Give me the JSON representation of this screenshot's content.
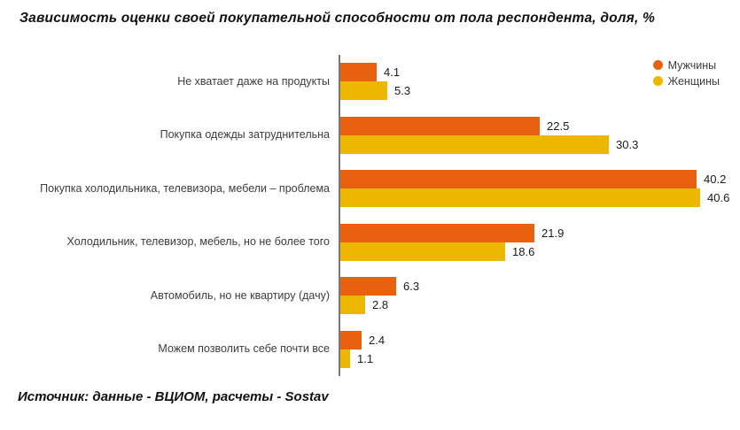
{
  "title": "Зависимость оценки своей покупательной способности от пола респондента, доля, %",
  "source": "Источник: данные - ВЦИОМ, расчеты - Sostav",
  "colors": {
    "men": "#E8610F",
    "women": "#EDB700",
    "axis": "#757575",
    "label_text": "#3c3c3c",
    "value_text": "#1a1a1a"
  },
  "chart_data": {
    "type": "bar",
    "orientation": "horizontal",
    "title": "Зависимость оценки своей покупательной способности от пола респондента, доля, %",
    "xlabel": "",
    "ylabel": "",
    "xlim": [
      0,
      45
    ],
    "grid": false,
    "value_labels": true,
    "legend_position": "top-right",
    "categories": [
      "Не хватает даже на продукты",
      "Покупка одежды затруднительна",
      "Покупка холодильника, телевизора, мебели – проблема",
      "Холодильник, телевизор, мебель, но не более того",
      "Автомобиль, но не квартиру (дачу)",
      "Можем позволить себе почти все"
    ],
    "series": [
      {
        "name": "Мужчины",
        "color": "#E8610F",
        "values": [
          4.1,
          22.5,
          40.2,
          21.9,
          6.3,
          2.4
        ]
      },
      {
        "name": "Женщины",
        "color": "#EDB700",
        "values": [
          5.3,
          30.3,
          40.6,
          18.6,
          2.8,
          1.1
        ]
      }
    ]
  }
}
